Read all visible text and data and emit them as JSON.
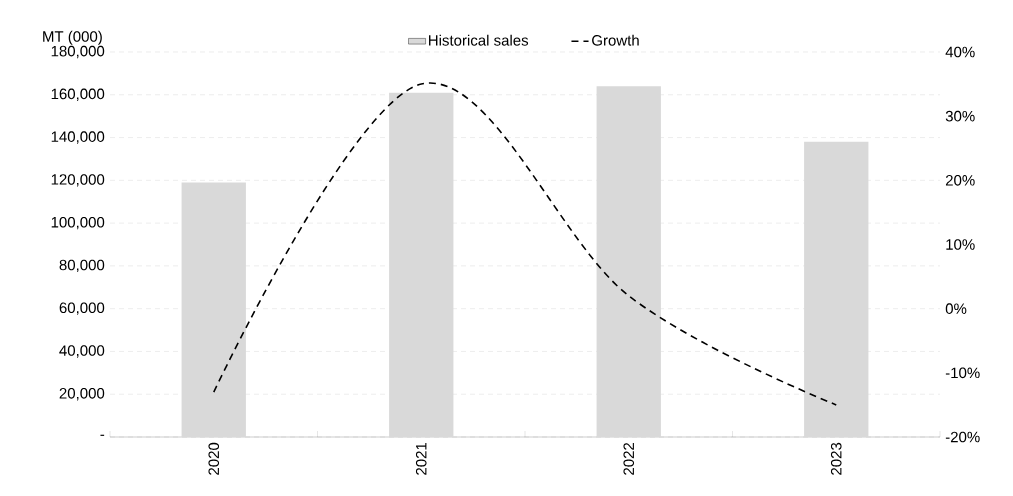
{
  "chart_data": {
    "type": "bar",
    "categories": [
      "2020",
      "2021",
      "2022",
      "2023"
    ],
    "ylabel": "MT (000)",
    "series": [
      {
        "name": "Historical sales",
        "color": "#d9d9d9",
        "values": [
          119000,
          161000,
          164000,
          138000
        ]
      },
      {
        "name": "Growth",
        "type": "line",
        "axis": "y2",
        "color": "#000000",
        "line_style": "dashed",
        "values": [
          -13,
          35,
          2,
          -15
        ]
      }
    ],
    "ylim": [
      0,
      180000
    ],
    "yticks": [
      {
        "value": 0,
        "label": "-"
      },
      {
        "value": 20000,
        "label": "20,000"
      },
      {
        "value": 40000,
        "label": "40,000"
      },
      {
        "value": 60000,
        "label": "60,000"
      },
      {
        "value": 80000,
        "label": "80,000"
      },
      {
        "value": 100000,
        "label": "100,000"
      },
      {
        "value": 120000,
        "label": "120,000"
      },
      {
        "value": 140000,
        "label": "140,000"
      },
      {
        "value": 160000,
        "label": "160,000"
      },
      {
        "value": 180000,
        "label": "180,000"
      }
    ],
    "y2lim": [
      -20,
      40
    ],
    "y2ticks": [
      {
        "value": -20,
        "label": "-20%"
      },
      {
        "value": -10,
        "label": "-10%"
      },
      {
        "value": 0,
        "label": "0%"
      },
      {
        "value": 10,
        "label": "10%"
      },
      {
        "value": 20,
        "label": "20%"
      },
      {
        "value": 30,
        "label": "30%"
      },
      {
        "value": 40,
        "label": "40%"
      }
    ],
    "grid": "y",
    "legend": "top",
    "marker": "none"
  }
}
